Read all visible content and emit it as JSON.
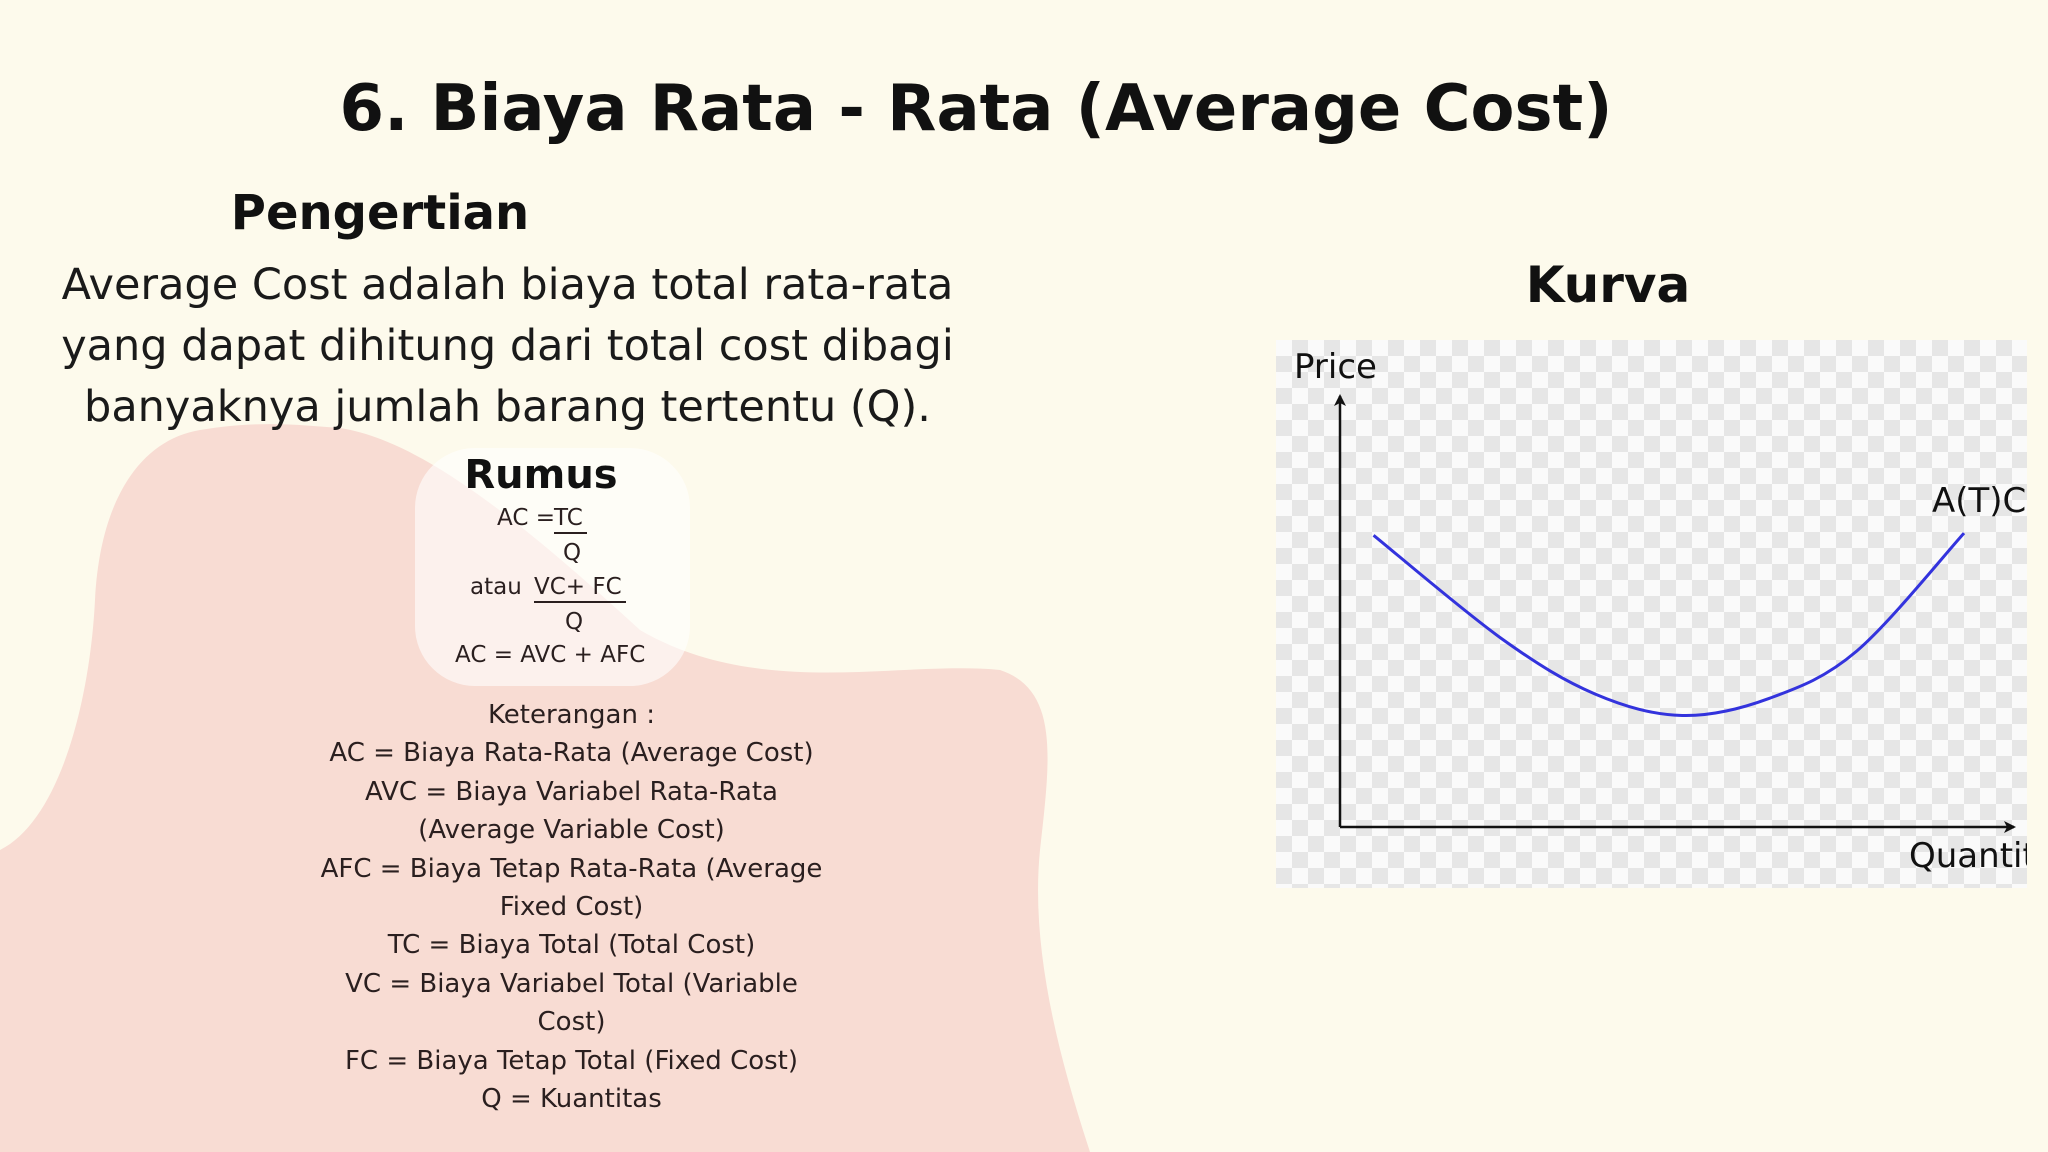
{
  "slide": {
    "title": "6. Biaya Rata - Rata (Average Cost)",
    "pengertian_heading": "Pengertian",
    "pengertian_lines": [
      "Average Cost adalah biaya total rata-rata",
      "yang dapat dihitung dari total cost dibagi",
      "banyaknya jumlah barang tertentu (Q)."
    ],
    "rumus": {
      "heading": "Rumus",
      "ac_eq": "AC =",
      "tc": "TC",
      "q1": "Q",
      "atau": "atau",
      "vcfc": "VC+ FC",
      "q2": "Q",
      "ac_sum": "AC = AVC + AFC"
    },
    "keterangan": [
      "Keterangan :",
      "AC = Biaya Rata-Rata (Average Cost)",
      "AVC = Biaya Variabel Rata-Rata",
      "(Average Variable Cost)",
      "AFC = Biaya Tetap Rata-Rata (Average",
      "Fixed Cost)",
      "TC = Biaya Total (Total Cost)",
      "VC = Biaya Variabel Total (Variable",
      "Cost)",
      "FC = Biaya Tetap Total (Fixed Cost)",
      "Q = Kuantitas"
    ],
    "kurva_heading": "Kurva",
    "colors": {
      "background": "#fdfaec",
      "blob": "#f8dcd3",
      "curve": "#3333dd"
    }
  },
  "chart_data": {
    "type": "line",
    "title": "Kurva",
    "xlabel": "Quantit",
    "ylabel": "Price",
    "xlim": [
      0,
      10
    ],
    "ylim": [
      0,
      10
    ],
    "grid": false,
    "series": [
      {
        "name": "A(T)C",
        "x": [
          0.5,
          2.4,
          3.8,
          5.1,
          6.4,
          7.7,
          9.3
        ],
        "y": [
          6.8,
          4.4,
          3.1,
          2.6,
          3.0,
          4.1,
          6.85
        ]
      }
    ]
  }
}
